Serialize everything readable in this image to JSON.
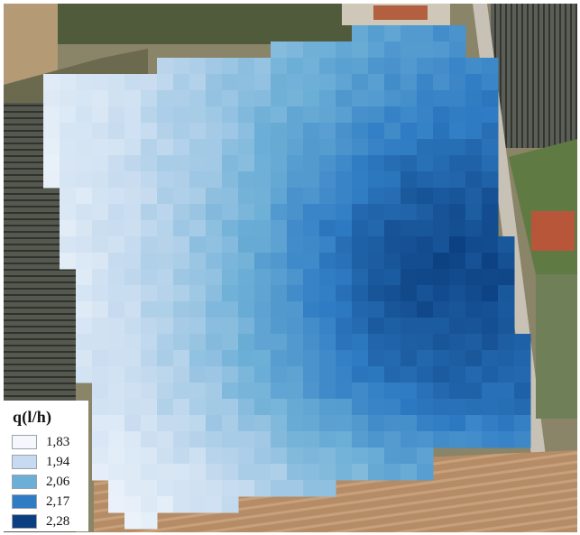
{
  "legend": {
    "title": "q(l/h)",
    "items": [
      {
        "label": "1,83",
        "value": 1.83,
        "color": "#f4f8fd"
      },
      {
        "label": "1,94",
        "value": 1.94,
        "color": "#c6dbef"
      },
      {
        "label": "2,06",
        "value": 2.06,
        "color": "#6baed6"
      },
      {
        "label": "2,17",
        "value": 2.17,
        "color": "#2f7cc4"
      },
      {
        "label": "2,28",
        "value": 2.28,
        "color": "#0b3f80"
      }
    ]
  },
  "colors": {
    "field_bare": "#b89470",
    "vineyard": "#4b4e48",
    "vegetation": "#5d7a3f",
    "road": "#c8c2b6",
    "roof": "#b8563a"
  }
}
